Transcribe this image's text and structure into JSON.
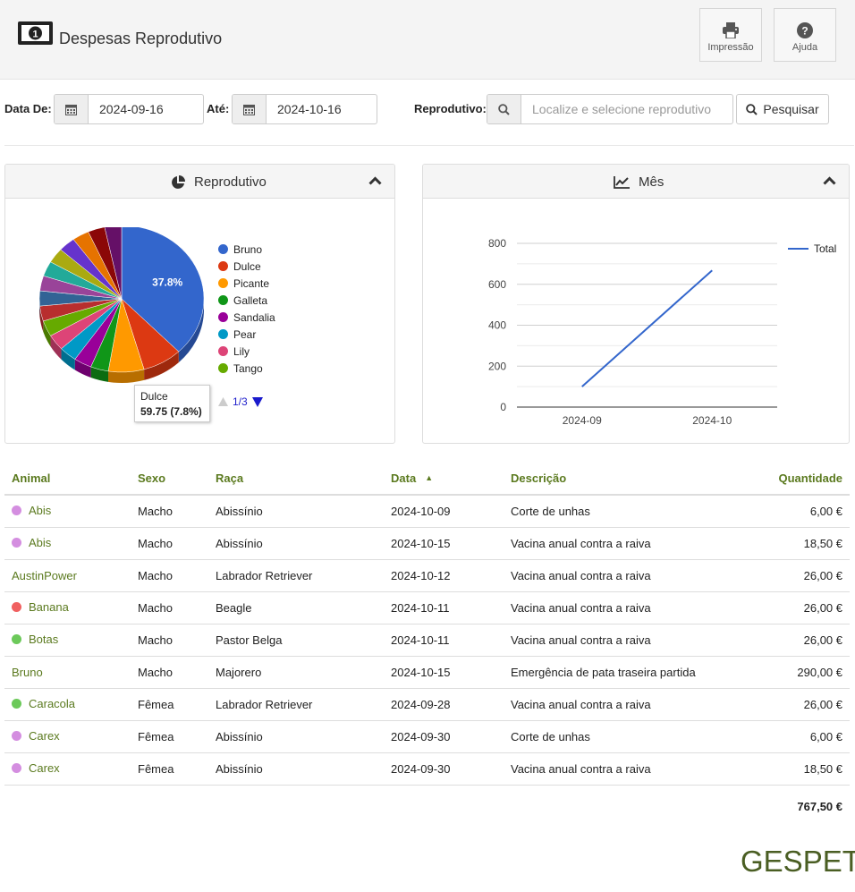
{
  "header": {
    "title": "Despesas Reprodutivo",
    "print_label": "Impressão",
    "help_label": "Ajuda"
  },
  "filters": {
    "date_from_label": "Data De:",
    "date_from": "2024-09-16",
    "date_to_label": "Até:",
    "date_to": "2024-10-16",
    "reprodutivo_label": "Reprodutivo:",
    "reprodutivo_placeholder": "Localize e selecione reprodutivo",
    "search_label": "Pesquisar"
  },
  "panels": {
    "pie_title": "Reprodutivo",
    "line_title": "Mês"
  },
  "chart_data": [
    {
      "type": "pie",
      "title": "Reprodutivo",
      "labels": [
        "Bruno",
        "Dulce",
        "Picante",
        "Galleta",
        "Sandalia",
        "Pear",
        "Lily",
        "Tango"
      ],
      "values": [
        37.8,
        7.8,
        7.0,
        3.5,
        3.5,
        3.5,
        3.5,
        3.5
      ],
      "slice_label": "37.8%",
      "tooltip": {
        "name": "Dulce",
        "value": "59.75 (7.8%)"
      },
      "pager": "1/3"
    },
    {
      "type": "line",
      "title": "Mês",
      "categories": [
        "2024-09",
        "2024-10"
      ],
      "series": [
        {
          "name": "Total",
          "values": [
            100,
            668
          ]
        }
      ],
      "ylim": [
        0,
        800
      ],
      "yticks": [
        "0",
        "200",
        "400",
        "600",
        "800"
      ]
    }
  ],
  "table": {
    "columns": [
      "Animal",
      "Sexo",
      "Raça",
      "Data",
      "Descrição",
      "Quantidade"
    ],
    "rows": [
      {
        "animal": "Abis",
        "dot": "#d48ee0",
        "sexo": "Macho",
        "raca": "Abissínio",
        "data": "2024-10-09",
        "descricao": "Corte de unhas",
        "quantidade": "6,00 €"
      },
      {
        "animal": "Abis",
        "dot": "#d48ee0",
        "sexo": "Macho",
        "raca": "Abissínio",
        "data": "2024-10-15",
        "descricao": "Vacina anual contra a raiva",
        "quantidade": "18,50 €"
      },
      {
        "animal": "AustinPower",
        "dot": "",
        "sexo": "Macho",
        "raca": "Labrador Retriever",
        "data": "2024-10-12",
        "descricao": "Vacina anual contra a raiva",
        "quantidade": "26,00 €"
      },
      {
        "animal": "Banana",
        "dot": "#f06060",
        "sexo": "Macho",
        "raca": "Beagle",
        "data": "2024-10-11",
        "descricao": "Vacina anual contra a raiva",
        "quantidade": "26,00 €"
      },
      {
        "animal": "Botas",
        "dot": "#6cc95a",
        "sexo": "Macho",
        "raca": "Pastor Belga",
        "data": "2024-10-11",
        "descricao": "Vacina anual contra a raiva",
        "quantidade": "26,00 €"
      },
      {
        "animal": "Bruno",
        "dot": "",
        "sexo": "Macho",
        "raca": "Majorero",
        "data": "2024-10-15",
        "descricao": "Emergência de pata traseira partida",
        "quantidade": "290,00 €"
      },
      {
        "animal": "Caracola",
        "dot": "#6cc95a",
        "sexo": "Fêmea",
        "raca": "Labrador Retriever",
        "data": "2024-09-28",
        "descricao": "Vacina anual contra a raiva",
        "quantidade": "26,00 €"
      },
      {
        "animal": "Carex",
        "dot": "#d48ee0",
        "sexo": "Fêmea",
        "raca": "Abissínio",
        "data": "2024-09-30",
        "descricao": "Corte de unhas",
        "quantidade": "6,00 €"
      },
      {
        "animal": "Carex",
        "dot": "#d48ee0",
        "sexo": "Fêmea",
        "raca": "Abissínio",
        "data": "2024-09-30",
        "descricao": "Vacina anual contra a raiva",
        "quantidade": "18,50 €"
      }
    ],
    "total": "767,50 €"
  },
  "brand": "GESPET",
  "colors": {
    "accent": "#5b7a1f",
    "pie": [
      "#3366cc",
      "#dc3912",
      "#ff9900",
      "#109618",
      "#990099",
      "#0099c6",
      "#dd4477",
      "#66aa00",
      "#b82e2e",
      "#316395",
      "#994499",
      "#22aa99",
      "#aaaa11",
      "#6633cc",
      "#e67300",
      "#8b0707",
      "#651067"
    ]
  }
}
